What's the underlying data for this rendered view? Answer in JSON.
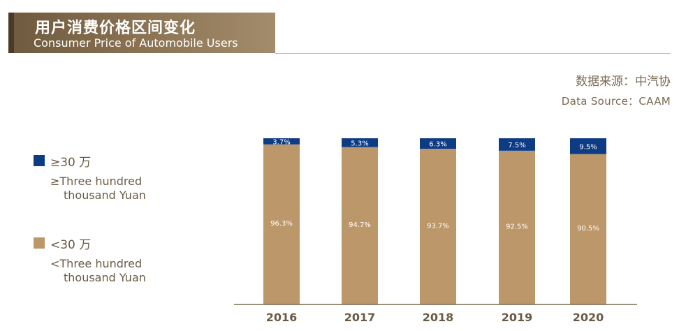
{
  "header": {
    "title_cn": "用户消费价格区间变化",
    "title_en": "Consumer Price of Automobile Users"
  },
  "source": {
    "cn": "数据来源：中汽协",
    "en": "Data Source：CAAM"
  },
  "legend": [
    {
      "label_cn": "≥30 万",
      "label_en_1": "≥Three hundred",
      "label_en_2": "thousand Yuan",
      "color": "#0d3b84"
    },
    {
      "label_cn": "<30 万",
      "label_en_1": "<Three hundred",
      "label_en_2": "thousand Yuan",
      "color": "#bc9769"
    }
  ],
  "chart_data": {
    "type": "bar",
    "stacked": true,
    "categories": [
      "2016",
      "2017",
      "2018",
      "2019",
      "2020"
    ],
    "series": [
      {
        "name": "<30 万",
        "values": [
          96.3,
          94.7,
          93.7,
          92.5,
          90.5
        ],
        "labels": [
          "96.3%",
          "94.7%",
          "93.7%",
          "92.5%",
          "90.5%"
        ],
        "color": "#bc9769"
      },
      {
        "name": "≥30 万",
        "values": [
          3.7,
          5.3,
          6.3,
          7.5,
          9.5
        ],
        "labels": [
          "3.7%",
          "5.3%",
          "6.3%",
          "7.5%",
          "9.5%"
        ],
        "color": "#0d3b84"
      }
    ],
    "ylim": [
      0,
      100
    ],
    "grid": false
  }
}
